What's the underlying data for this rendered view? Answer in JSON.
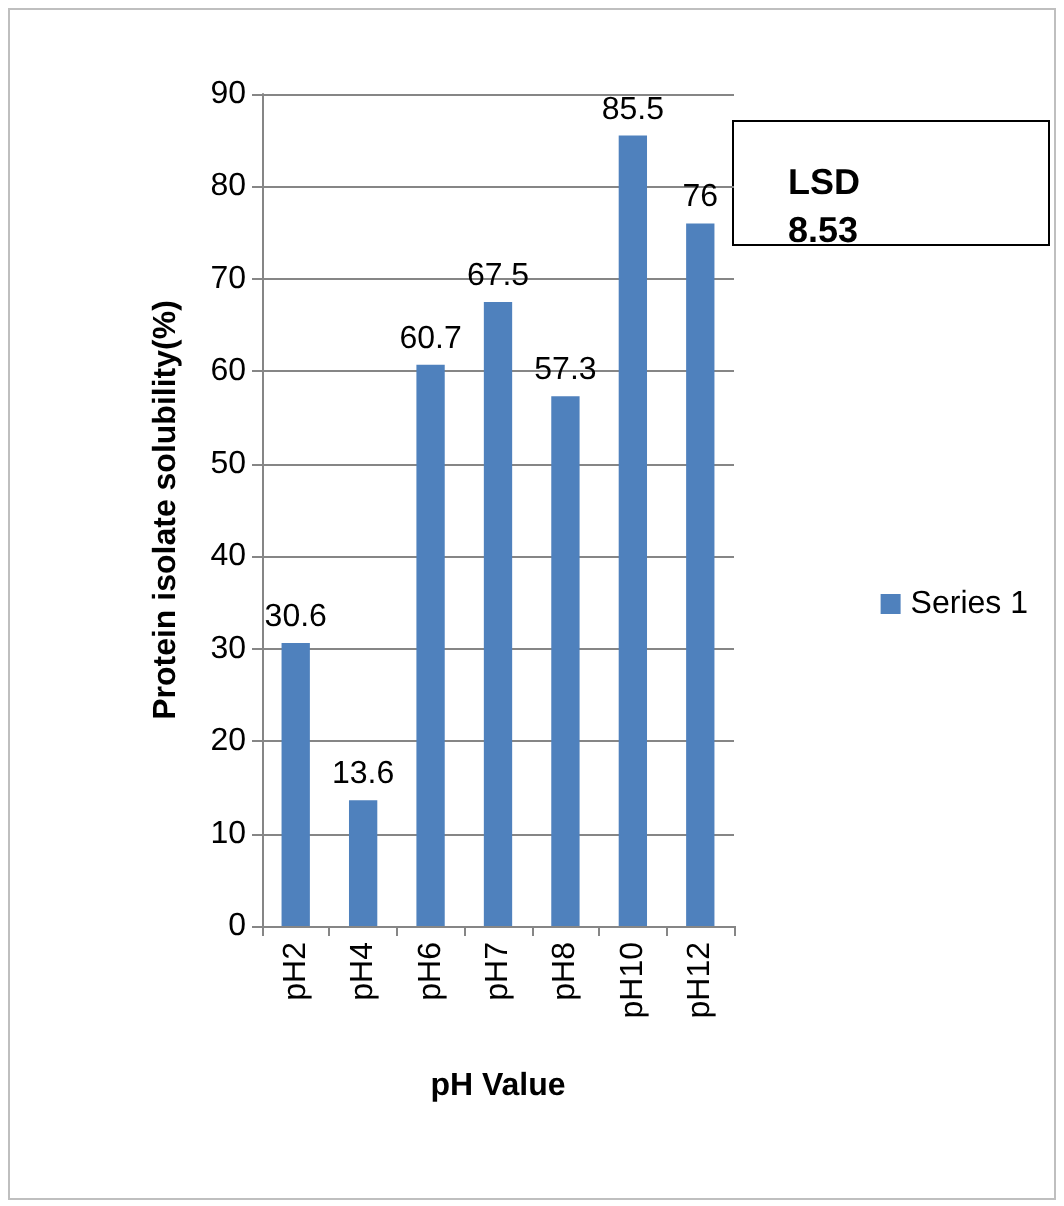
{
  "chart_data": {
    "type": "bar",
    "xlabel": "pH Value",
    "ylabel": "Protein isolate solubility(%)",
    "categories": [
      "pH2",
      "pH4",
      "pH6",
      "pH7",
      "pH8",
      "pH10",
      "pH12"
    ],
    "series": [
      {
        "name": "Series 1",
        "color": "#4f81bd",
        "values": [
          30.6,
          13.6,
          60.7,
          67.5,
          57.3,
          85.5,
          76
        ]
      }
    ],
    "ylim": [
      0,
      90
    ],
    "yticks": [
      0,
      10,
      20,
      30,
      40,
      50,
      60,
      70,
      80,
      90
    ],
    "grid": "y",
    "legend": "right",
    "data_labels": true,
    "annotations": [
      "LSD 8.53"
    ]
  }
}
